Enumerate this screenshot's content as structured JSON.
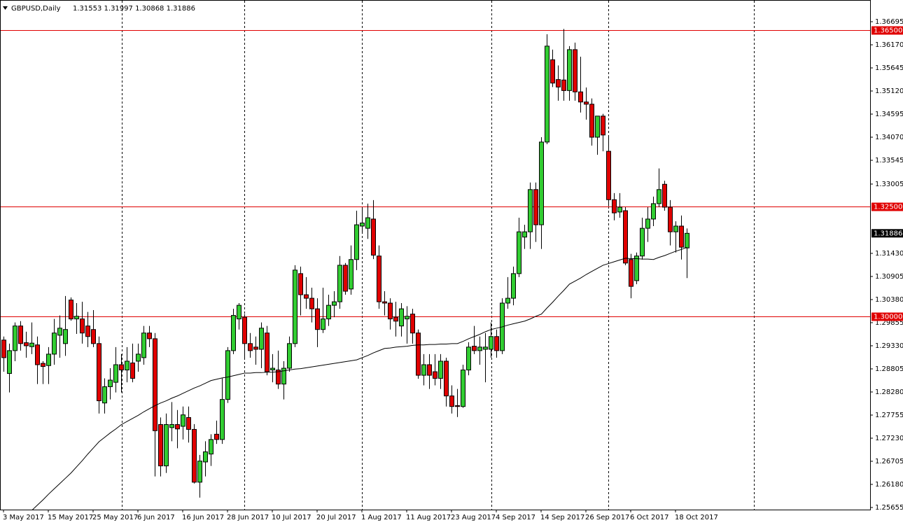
{
  "chart_data": {
    "type": "candlestick",
    "title": "GBPUSD,Daily",
    "subtitle": "1.31553 1.31997 1.30868 1.31886",
    "up_color": "#32cd32",
    "down_color": "#e00000",
    "categories": [
      "3 May 2017",
      null,
      null,
      null,
      null,
      null,
      null,
      null,
      "15 May 2017",
      null,
      null,
      null,
      null,
      null,
      null,
      null,
      "25 May 2017",
      null,
      null,
      null,
      null,
      null,
      null,
      null,
      "6 Jun 2017",
      null,
      null,
      null,
      null,
      null,
      null,
      null,
      "16 Jun 2017",
      null,
      null,
      null,
      null,
      null,
      null,
      null,
      "28 Jun 2017",
      null,
      null,
      null,
      null,
      null,
      null,
      null,
      "10 Jul 2017",
      null,
      null,
      null,
      null,
      null,
      null,
      null,
      "20 Jul 2017",
      null,
      null,
      null,
      null,
      null,
      null,
      null,
      "1 Aug 2017",
      null,
      null,
      null,
      null,
      null,
      null,
      null,
      "11 Aug 2017",
      null,
      null,
      null,
      null,
      null,
      null,
      null,
      "23 Aug 2017",
      null,
      null,
      null,
      null,
      null,
      null,
      null,
      "4 Sep 2017",
      null,
      null,
      null,
      null,
      null,
      null,
      null,
      "14 Sep 2017",
      null,
      null,
      null,
      null,
      null,
      null,
      null,
      "26 Sep 2017",
      null,
      null,
      null,
      null,
      null,
      null,
      null,
      "6 Oct 2017",
      null,
      null,
      null,
      null,
      null,
      null,
      null,
      "18 Oct 2017",
      null,
      null
    ],
    "open": [
      1.2946,
      1.287,
      1.2922,
      1.2978,
      1.294,
      1.2931,
      1.2935,
      1.2893,
      1.2888,
      1.2914,
      1.2957,
      1.2938,
      1.3037,
      1.2994,
      1.2994,
      1.2978,
      1.297,
      1.2938,
      1.2803,
      1.284,
      1.285,
      1.289,
      1.2878,
      1.2894,
      1.2898,
      1.2906,
      1.2962,
      1.2949,
      1.2754,
      1.266,
      1.2747,
      1.2754,
      1.275,
      1.277,
      1.2743,
      1.2623,
      1.2669,
      1.2687,
      1.2732,
      1.272,
      1.2811,
      1.2922,
      1.2994,
      1.2998,
      1.2938,
      1.293,
      1.2925,
      1.2962,
      1.2878,
      1.2878,
      1.2846,
      1.2882,
      1.2938,
      1.3097,
      1.3049,
      1.3041,
      1.3017,
      1.297,
      1.2994,
      1.3025,
      1.3033,
      1.3116,
      1.3062,
      1.3129,
      1.3205,
      1.32,
      1.3221,
      1.3137,
      1.3033,
      1.303,
      1.2998,
      1.2978,
      1.2994,
      1.3005,
      1.2962,
      1.2866,
      1.289,
      1.2874,
      1.2859,
      1.2898,
      1.2819,
      1.2797,
      1.2795,
      1.2878,
      1.2932,
      1.2922,
      1.2925,
      1.2925,
      1.2954,
      1.2922,
      1.303,
      1.3041,
      1.3097,
      1.318,
      1.3192,
      1.3288,
      1.3208,
      1.3396,
      1.3583,
      1.3538,
      1.3537,
      1.3513,
      1.3606,
      1.351,
      1.3487,
      1.3482,
      1.3407,
      1.3455,
      1.3375,
      1.3265,
      1.3237,
      1.324,
      1.3129,
      1.3081,
      1.3137,
      1.32,
      1.3221,
      1.3256,
      1.33,
      1.3248,
      1.3192,
      1.3205,
      1.31553
    ],
    "high": [
      1.2954,
      1.2938,
      1.2986,
      1.2989,
      1.2965,
      1.2986,
      1.2954,
      1.2898,
      1.293,
      1.2994,
      1.3002,
      1.3046,
      1.3043,
      1.303,
      1.3033,
      1.301,
      1.3014,
      1.2954,
      1.2859,
      1.2882,
      1.293,
      1.2914,
      1.293,
      1.2938,
      1.2938,
      1.2978,
      1.2978,
      1.2962,
      1.277,
      1.2779,
      1.2805,
      1.2787,
      1.2795,
      1.2795,
      1.2755,
      1.2685,
      1.2716,
      1.2732,
      1.2763,
      1.2859,
      1.293,
      1.3017,
      1.303,
      1.3005,
      1.2962,
      1.2954,
      1.2986,
      1.2978,
      1.2914,
      1.2922,
      1.2898,
      1.2954,
      1.3116,
      1.3113,
      1.3089,
      1.3065,
      1.3041,
      1.3065,
      1.3049,
      1.3057,
      1.3137,
      1.3121,
      1.3161,
      1.324,
      1.3248,
      1.3256,
      1.3264,
      1.3161,
      1.3057,
      1.3041,
      1.3033,
      1.303,
      1.3023,
      1.3017,
      1.297,
      1.2914,
      1.2914,
      1.2914,
      1.2914,
      1.2906,
      1.2843,
      1.2835,
      1.289,
      1.2941,
      1.2978,
      1.2954,
      1.2962,
      1.2986,
      1.297,
      1.3041,
      1.3089,
      1.3113,
      1.3224,
      1.3208,
      1.3304,
      1.3304,
      1.3407,
      1.3641,
      1.3606,
      1.357,
      1.3653,
      1.3614,
      1.3622,
      1.359,
      1.352,
      1.3495,
      1.3455,
      1.346,
      1.3407,
      1.328,
      1.328,
      1.3248,
      1.3142,
      1.3145,
      1.3224,
      1.3248,
      1.3272,
      1.3336,
      1.3308,
      1.3264,
      1.3216,
      1.3229,
      1.31997
    ],
    "low": [
      1.2874,
      1.2827,
      1.2898,
      1.2922,
      1.2906,
      1.2914,
      1.2846,
      1.2846,
      1.2846,
      1.289,
      1.2906,
      1.291,
      1.299,
      1.296,
      1.2938,
      1.293,
      1.293,
      1.2779,
      1.2779,
      1.2811,
      1.2827,
      1.2827,
      1.285,
      1.285,
      1.2874,
      1.289,
      1.293,
      1.2636,
      1.2636,
      1.2644,
      1.2716,
      1.27,
      1.272,
      1.2713,
      1.262,
      1.2588,
      1.2636,
      1.266,
      1.271,
      1.271,
      1.2803,
      1.2914,
      1.297,
      1.2906,
      1.2906,
      1.289,
      1.2882,
      1.2866,
      1.285,
      1.2835,
      1.2811,
      1.2874,
      1.293,
      1.3002,
      1.3017,
      1.2986,
      1.293,
      1.2962,
      1.2978,
      1.2998,
      1.3017,
      1.3049,
      1.3049,
      1.3105,
      1.3192,
      1.3176,
      1.313,
      1.3017,
      1.3002,
      1.297,
      1.2954,
      1.2954,
      1.2938,
      1.2938,
      1.2858,
      1.2843,
      1.2835,
      1.2843,
      1.2835,
      1.2795,
      1.2779,
      1.2771,
      1.2792,
      1.2866,
      1.2914,
      1.289,
      1.285,
      1.2906,
      1.2906,
      1.2914,
      1.3017,
      1.3025,
      1.3089,
      1.3153,
      1.3153,
      1.3169,
      1.3153,
      1.3391,
      1.3521,
      1.349,
      1.349,
      1.349,
      1.349,
      1.3463,
      1.3447,
      1.3388,
      1.3367,
      1.3375,
      1.325,
      1.3218,
      1.3224,
      1.3116,
      1.3041,
      1.3073,
      1.3129,
      1.3169,
      1.3205,
      1.3248,
      1.324,
      1.3161,
      1.3145,
      1.3129,
      1.30868
    ],
    "close": [
      1.2906,
      1.2922,
      1.2978,
      1.2938,
      1.2933,
      1.2939,
      1.289,
      1.2886,
      1.2914,
      1.2962,
      1.2973,
      1.297,
      1.2994,
      1.3,
      1.2962,
      1.2954,
      1.2938,
      1.2808,
      1.284,
      1.2855,
      1.289,
      1.2878,
      1.2898,
      1.2859,
      1.2914,
      1.2962,
      1.2949,
      1.274,
      1.266,
      1.2754,
      1.2754,
      1.2744,
      1.2776,
      1.2743,
      1.2623,
      1.2671,
      1.2692,
      1.272,
      1.272,
      1.2811,
      1.2922,
      1.3002,
      1.3025,
      1.2938,
      1.2922,
      1.2925,
      1.2973,
      1.2874,
      1.2882,
      1.2846,
      1.2882,
      1.2938,
      1.3105,
      1.3049,
      1.3041,
      1.3017,
      1.297,
      1.2994,
      1.3025,
      1.3033,
      1.3116,
      1.3057,
      1.3129,
      1.3208,
      1.3212,
      1.3224,
      1.3139,
      1.3033,
      1.303,
      1.2994,
      1.2989,
      1.3017,
      1.3,
      1.2962,
      1.2866,
      1.289,
      1.2866,
      1.2859,
      1.2898,
      1.2819,
      1.2795,
      1.2795,
      1.2878,
      1.293,
      1.2922,
      1.293,
      1.293,
      1.2954,
      1.2922,
      1.303,
      1.3041,
      1.3097,
      1.3192,
      1.3192,
      1.3288,
      1.3208,
      1.3396,
      1.3614,
      1.353,
      1.3521,
      1.3513,
      1.3606,
      1.351,
      1.3487,
      1.3482,
      1.3407,
      1.3455,
      1.3412,
      1.3265,
      1.3235,
      1.3248,
      1.3121,
      1.3068,
      1.3137,
      1.32,
      1.3221,
      1.3256,
      1.3288,
      1.3248,
      1.3192,
      1.3205,
      1.3157,
      1.31886
    ],
    "ma": {
      "color": "#000000",
      "values": [
        null,
        null,
        null,
        null,
        null,
        1.2559,
        1.2571,
        1.2583,
        1.2596,
        1.2608,
        1.262,
        1.2632,
        1.2644,
        1.2658,
        1.2672,
        1.2687,
        1.2701,
        1.2715,
        1.2725,
        1.2735,
        1.2744,
        1.2754,
        1.2761,
        1.2768,
        1.2775,
        1.2783,
        1.279,
        1.2797,
        1.2803,
        1.2808,
        1.2814,
        1.2819,
        1.2825,
        1.2831,
        1.2837,
        1.2842,
        1.2848,
        1.2854,
        1.2857,
        1.286,
        1.2862,
        1.2865,
        1.2868,
        1.2871,
        1.2871,
        1.2872,
        1.2872,
        1.2873,
        1.2873,
        1.2874,
        1.2876,
        1.2878,
        1.288,
        1.2881,
        1.2883,
        1.2885,
        1.2887,
        1.2889,
        1.2891,
        1.2893,
        1.2895,
        1.2897,
        1.2899,
        1.2901,
        1.2906,
        1.2911,
        1.2917,
        1.2922,
        1.2927,
        1.2928,
        1.293,
        1.2931,
        1.2932,
        1.2934,
        1.2935,
        1.2935,
        1.2936,
        1.2936,
        1.2937,
        1.2937,
        1.2938,
        1.2938,
        1.2943,
        1.2949,
        1.2954,
        1.2959,
        1.2965,
        1.297,
        1.2973,
        1.2976,
        1.298,
        1.2983,
        1.2986,
        1.2989,
        1.2994,
        1.3,
        1.3005,
        1.3019,
        1.3032,
        1.3046,
        1.3059,
        1.3073,
        1.308,
        1.3087,
        1.3095,
        1.3102,
        1.3109,
        1.3116,
        1.312,
        1.3124,
        1.3128,
        1.3132,
        1.3131,
        1.3131,
        1.313,
        1.313,
        1.3129,
        1.3134,
        1.3138,
        1.3143,
        1.3148,
        1.3152,
        1.3157
      ]
    },
    "hlines": [
      {
        "value": 1.365,
        "label": "1.36500"
      },
      {
        "value": 1.325,
        "label": "1.32500"
      },
      {
        "value": 1.3,
        "label": "1.30000"
      }
    ],
    "hline_color": "#e00000",
    "last_price": {
      "value": 1.31886,
      "label": "1.31886"
    },
    "ylim": [
      1.25607,
      1.37188
    ],
    "yticks": [
      {
        "value": 1.36695,
        "label": "1.36695"
      },
      {
        "value": 1.3617,
        "label": "1.36170"
      },
      {
        "value": 1.35645,
        "label": "1.35645"
      },
      {
        "value": 1.3512,
        "label": "1.35120"
      },
      {
        "value": 1.34595,
        "label": "1.34595"
      },
      {
        "value": 1.3407,
        "label": "1.34070"
      },
      {
        "value": 1.33545,
        "label": "1.33545"
      },
      {
        "value": 1.33005,
        "label": "1.33005"
      },
      {
        "value": 1.3143,
        "label": "1.31430"
      },
      {
        "value": 1.30905,
        "label": "1.30905"
      },
      {
        "value": 1.3038,
        "label": "1.30380"
      },
      {
        "value": 1.29855,
        "label": "1.29855"
      },
      {
        "value": 1.2933,
        "label": "1.29330"
      },
      {
        "value": 1.28805,
        "label": "1.28805"
      },
      {
        "value": 1.2828,
        "label": "1.28280"
      },
      {
        "value": 1.27755,
        "label": "1.27755"
      },
      {
        "value": 1.2723,
        "label": "1.27230"
      },
      {
        "value": 1.26705,
        "label": "1.26705"
      },
      {
        "value": 1.2618,
        "label": "1.26180"
      },
      {
        "value": 1.25655,
        "label": "1.25655"
      }
    ]
  }
}
